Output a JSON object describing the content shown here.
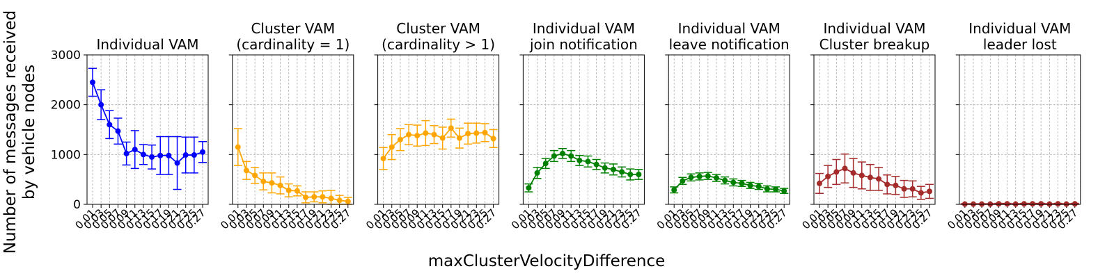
{
  "figure": {
    "ylabel_line1": "Number of messages received",
    "ylabel_line2": "by vehicle nodes",
    "xlabel": "maxClusterVelocityDifference"
  },
  "chart_data": [
    {
      "type": "line",
      "title_lines": [
        "Individual VAM"
      ],
      "color": "#0000ff",
      "x": [
        "0.01",
        "0.03",
        "0.05",
        "0.07",
        "0.09",
        "0.11",
        "0.13",
        "0.15",
        "0.17",
        "0.19",
        "0.21",
        "0.23",
        "0.25",
        "0.27"
      ],
      "values": [
        2450,
        2000,
        1600,
        1470,
        1020,
        1100,
        1000,
        950,
        980,
        980,
        830,
        990,
        990,
        1050
      ],
      "error": [
        280,
        300,
        280,
        260,
        230,
        380,
        200,
        240,
        380,
        380,
        530,
        360,
        360,
        210
      ],
      "ylim": [
        0,
        3000
      ],
      "yticks": [
        0,
        1000,
        2000,
        3000
      ]
    },
    {
      "type": "line",
      "title_lines": [
        "Cluster VAM",
        "(cardinality = 1)"
      ],
      "color": "#ffa500",
      "x": [
        "0.01",
        "0.03",
        "0.05",
        "0.07",
        "0.09",
        "0.11",
        "0.13",
        "0.15",
        "0.17",
        "0.19",
        "0.21",
        "0.23",
        "0.25",
        "0.27"
      ],
      "values": [
        1150,
        680,
        580,
        460,
        430,
        380,
        280,
        270,
        140,
        150,
        150,
        120,
        80,
        60
      ],
      "error": [
        370,
        180,
        160,
        170,
        200,
        170,
        130,
        100,
        110,
        100,
        120,
        160,
        100,
        80
      ],
      "ylim": [
        0,
        3000
      ],
      "yticks": [
        0,
        1000,
        2000,
        3000
      ]
    },
    {
      "type": "line",
      "title_lines": [
        "Cluster VAM",
        "(cardinality > 1)"
      ],
      "color": "#ffa500",
      "x": [
        "0.01",
        "0.03",
        "0.05",
        "0.07",
        "0.09",
        "0.11",
        "0.13",
        "0.15",
        "0.17",
        "0.19",
        "0.21",
        "0.23",
        "0.25",
        "0.27"
      ],
      "values": [
        920,
        1150,
        1300,
        1400,
        1380,
        1430,
        1400,
        1330,
        1530,
        1330,
        1420,
        1430,
        1440,
        1320
      ],
      "error": [
        220,
        250,
        220,
        200,
        210,
        250,
        180,
        220,
        180,
        200,
        210,
        200,
        180,
        180
      ],
      "ylim": [
        0,
        3000
      ],
      "yticks": [
        0,
        1000,
        2000,
        3000
      ]
    },
    {
      "type": "line",
      "title_lines": [
        "Individual VAM",
        "join notification"
      ],
      "color": "#008000",
      "x": [
        "0.01",
        "0.03",
        "0.05",
        "0.07",
        "0.09",
        "0.11",
        "0.13",
        "0.15",
        "0.17",
        "0.19",
        "0.21",
        "0.23",
        "0.25",
        "0.27"
      ],
      "values": [
        330,
        630,
        820,
        970,
        1020,
        970,
        880,
        860,
        800,
        730,
        700,
        650,
        600,
        600
      ],
      "error": [
        80,
        110,
        100,
        110,
        100,
        110,
        100,
        110,
        100,
        100,
        110,
        100,
        110,
        100
      ],
      "ylim": [
        0,
        3000
      ],
      "yticks": [
        0,
        1000,
        2000,
        3000
      ]
    },
    {
      "type": "line",
      "title_lines": [
        "Individual VAM",
        "leave notification"
      ],
      "color": "#008000",
      "x": [
        "0.01",
        "0.03",
        "0.05",
        "0.07",
        "0.09",
        "0.11",
        "0.13",
        "0.15",
        "0.17",
        "0.19",
        "0.21",
        "0.23",
        "0.25",
        "0.27"
      ],
      "values": [
        290,
        470,
        540,
        560,
        570,
        530,
        480,
        440,
        420,
        380,
        360,
        310,
        300,
        270
      ],
      "error": [
        60,
        70,
        70,
        70,
        70,
        70,
        70,
        70,
        60,
        60,
        60,
        60,
        50,
        50
      ],
      "ylim": [
        0,
        3000
      ],
      "yticks": [
        0,
        1000,
        2000,
        3000
      ]
    },
    {
      "type": "line",
      "title_lines": [
        "Individual VAM",
        "Cluster breakup"
      ],
      "color": "#a52a2a",
      "x": [
        "0.01",
        "0.03",
        "0.05",
        "0.07",
        "0.09",
        "0.11",
        "0.13",
        "0.15",
        "0.17",
        "0.19",
        "0.21",
        "0.23",
        "0.25",
        "0.27"
      ],
      "values": [
        420,
        560,
        650,
        720,
        630,
        580,
        540,
        510,
        400,
        380,
        310,
        310,
        230,
        260
      ],
      "error": [
        200,
        220,
        250,
        290,
        290,
        270,
        260,
        230,
        190,
        180,
        170,
        160,
        130,
        140
      ],
      "ylim": [
        0,
        3000
      ],
      "yticks": [
        0,
        1000,
        2000,
        3000
      ]
    },
    {
      "type": "line",
      "title_lines": [
        "Individual VAM",
        "leader lost"
      ],
      "color": "#a52a2a",
      "x": [
        "0.01",
        "0.03",
        "0.05",
        "0.07",
        "0.09",
        "0.11",
        "0.13",
        "0.15",
        "0.17",
        "0.19",
        "0.21",
        "0.23",
        "0.25",
        "0.27"
      ],
      "values": [
        5,
        5,
        5,
        5,
        10,
        10,
        5,
        10,
        10,
        10,
        5,
        10,
        5,
        10
      ],
      "error": [
        8,
        8,
        8,
        8,
        10,
        10,
        8,
        10,
        10,
        10,
        8,
        10,
        8,
        10
      ],
      "ylim": [
        0,
        3000
      ],
      "yticks": [
        0,
        1000,
        2000,
        3000
      ]
    }
  ]
}
